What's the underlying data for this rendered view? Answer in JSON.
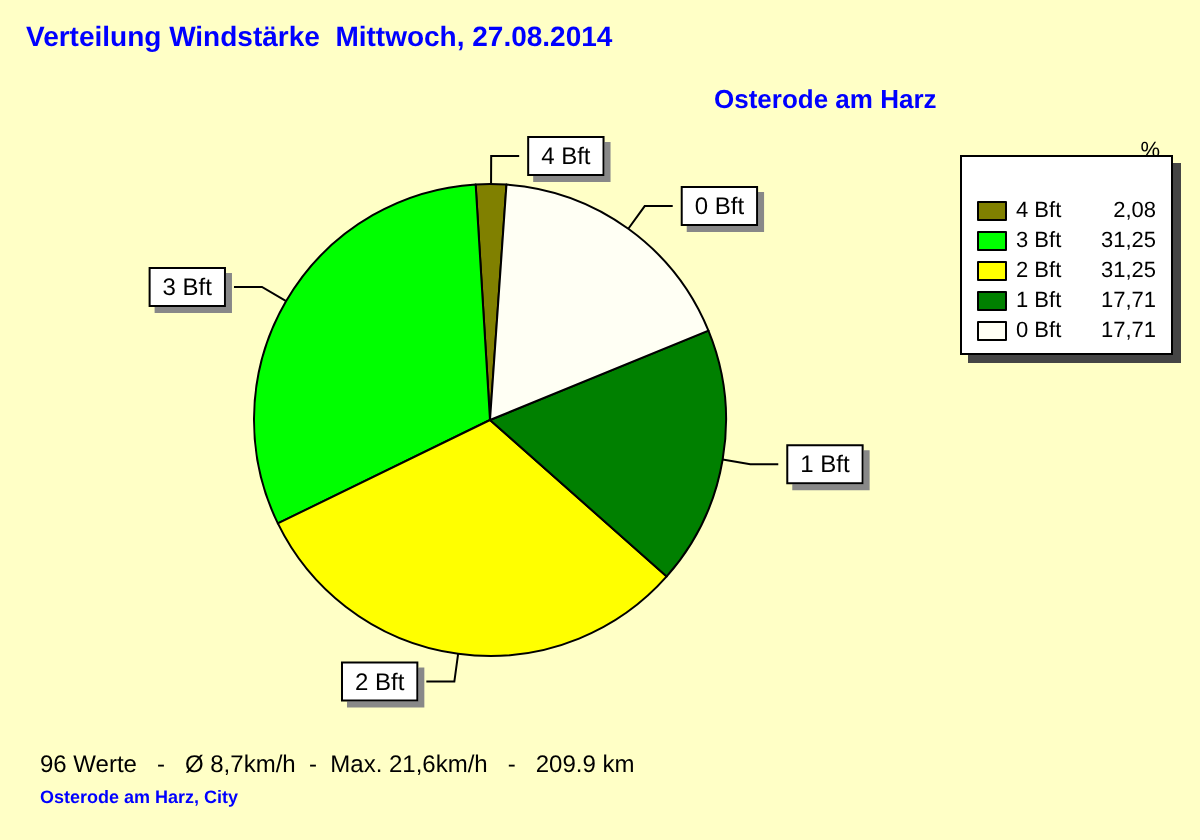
{
  "chart_data": {
    "type": "pie",
    "title": "Verteilung Windstärke  Mittwoch, 27.08.2014",
    "subtitle": "Osterode am Harz",
    "legend_title": "%",
    "categories": [
      "4 Bft",
      "3 Bft",
      "2 Bft",
      "1 Bft",
      "0 Bft"
    ],
    "values": [
      2.08,
      31.25,
      31.25,
      17.71,
      17.71
    ],
    "colors": [
      "#808000",
      "#00ff00",
      "#ffff00",
      "#008000",
      "#fffff4"
    ],
    "value_labels": [
      "2,08",
      "31,25",
      "31,25",
      "17,71",
      "17,71"
    ],
    "legend": "top right",
    "annotations": [
      "96 Werte   -   Ø 8,7km/h  -  Max. 21,6km/h   -   209.9 km",
      "Osterode am Harz, City"
    ]
  }
}
